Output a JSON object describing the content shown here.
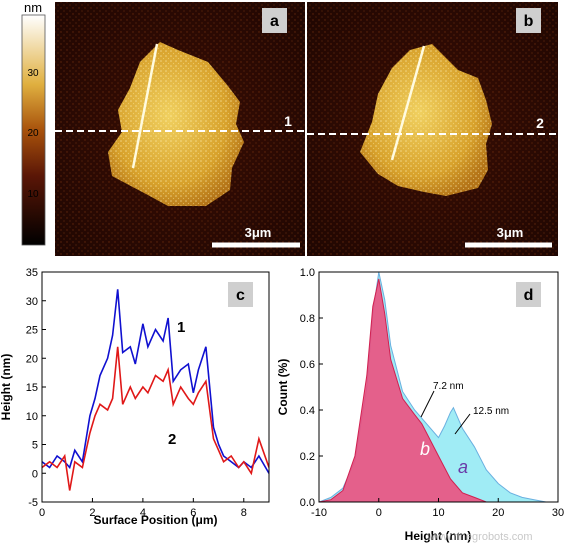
{
  "colorbar": {
    "unit": "nm",
    "ticks": [
      "30",
      "20",
      "10"
    ]
  },
  "panel_a": {
    "label": "a",
    "line_label": "1",
    "scale_label": "3μm"
  },
  "panel_b": {
    "label": "b",
    "line_label": "2",
    "scale_label": "3μm"
  },
  "chart_data": [
    {
      "panel": "c",
      "type": "line",
      "title": "",
      "xlabel": "Surface Position (μm)",
      "ylabel": "Height (nm)",
      "xlim": [
        0,
        9
      ],
      "ylim": [
        -5,
        35
      ],
      "xticks": [
        0,
        2,
        4,
        6,
        8
      ],
      "yticks": [
        -5,
        0,
        5,
        10,
        15,
        20,
        25,
        30,
        35
      ],
      "series": [
        {
          "name": "1",
          "color": "#1010d0",
          "x": [
            0,
            0.3,
            0.6,
            0.9,
            1.1,
            1.3,
            1.6,
            1.9,
            2.1,
            2.3,
            2.6,
            2.8,
            3.0,
            3.2,
            3.5,
            3.7,
            4.0,
            4.2,
            4.5,
            4.8,
            5.0,
            5.2,
            5.5,
            5.8,
            6.0,
            6.2,
            6.5,
            6.8,
            7.0,
            7.2,
            7.5,
            7.8,
            8.0,
            8.3,
            8.6,
            9.0
          ],
          "y": [
            2,
            1,
            3,
            2,
            1,
            4,
            2,
            10,
            13,
            17,
            20,
            24,
            32,
            21,
            22,
            19,
            26,
            22,
            25,
            23,
            27,
            16,
            18,
            19,
            14,
            18,
            22,
            8,
            5,
            3,
            2,
            1,
            2,
            1,
            3,
            0
          ]
        },
        {
          "name": "2",
          "color": "#e01818",
          "x": [
            0,
            0.3,
            0.6,
            0.9,
            1.1,
            1.3,
            1.6,
            1.9,
            2.1,
            2.3,
            2.6,
            2.8,
            3.0,
            3.2,
            3.5,
            3.7,
            4.0,
            4.2,
            4.5,
            4.8,
            5.0,
            5.2,
            5.5,
            5.8,
            6.0,
            6.2,
            6.5,
            6.8,
            7.0,
            7.2,
            7.5,
            7.8,
            8.0,
            8.3,
            8.6,
            9.0
          ],
          "y": [
            1,
            2,
            1,
            3,
            -3,
            2,
            1,
            7,
            10,
            12,
            11,
            13,
            22,
            12,
            15,
            13,
            15,
            14,
            17,
            16,
            18,
            12,
            15,
            13,
            12,
            14,
            16,
            6,
            4,
            2,
            3,
            1,
            2,
            0,
            6,
            1
          ]
        }
      ],
      "annotations": [
        "1",
        "2"
      ]
    },
    {
      "panel": "d",
      "type": "area",
      "title": "",
      "xlabel": "Height (nm)",
      "ylabel": "Count (%)",
      "xlim": [
        -10,
        30
      ],
      "ylim": [
        0,
        1.0
      ],
      "xticks": [
        -10,
        0,
        10,
        20,
        30
      ],
      "yticks": [
        0.0,
        0.2,
        0.4,
        0.6,
        0.8,
        1.0
      ],
      "series": [
        {
          "name": "a",
          "color": "#80e6f2",
          "x": [
            -10,
            -8,
            -6,
            -4,
            -2,
            -1,
            0,
            1,
            2,
            4,
            6,
            8,
            10,
            11,
            12,
            12.5,
            13,
            14,
            16,
            18,
            20,
            22,
            24,
            26,
            28,
            30
          ],
          "y": [
            0.0,
            0.02,
            0.06,
            0.18,
            0.5,
            0.82,
            1.0,
            0.88,
            0.68,
            0.48,
            0.4,
            0.34,
            0.28,
            0.33,
            0.39,
            0.41,
            0.38,
            0.32,
            0.24,
            0.14,
            0.08,
            0.04,
            0.02,
            0.01,
            0.0,
            0.0
          ]
        },
        {
          "name": "b",
          "color": "#f04878",
          "x": [
            -10,
            -8,
            -6,
            -4,
            -2,
            -1,
            0,
            1,
            2,
            4,
            6,
            7.2,
            8,
            10,
            12,
            14,
            16,
            18,
            20,
            22,
            30
          ],
          "y": [
            0.0,
            0.01,
            0.05,
            0.2,
            0.55,
            0.85,
            0.97,
            0.82,
            0.62,
            0.45,
            0.38,
            0.34,
            0.3,
            0.2,
            0.1,
            0.04,
            0.02,
            0.0,
            0.0,
            0.0,
            0.0
          ]
        }
      ],
      "annotations": [
        "7.2 nm",
        "12.5 nm",
        "a",
        "b"
      ]
    }
  ],
  "panel_c": {
    "label": "c",
    "curve1_label": "1",
    "curve2_label": "2"
  },
  "panel_d": {
    "label": "d",
    "ann1": "7.2 nm",
    "ann2": "12.5 nm",
    "label_a": "a",
    "label_b": "b",
    "watermark": "www.rinegrobots.com"
  }
}
